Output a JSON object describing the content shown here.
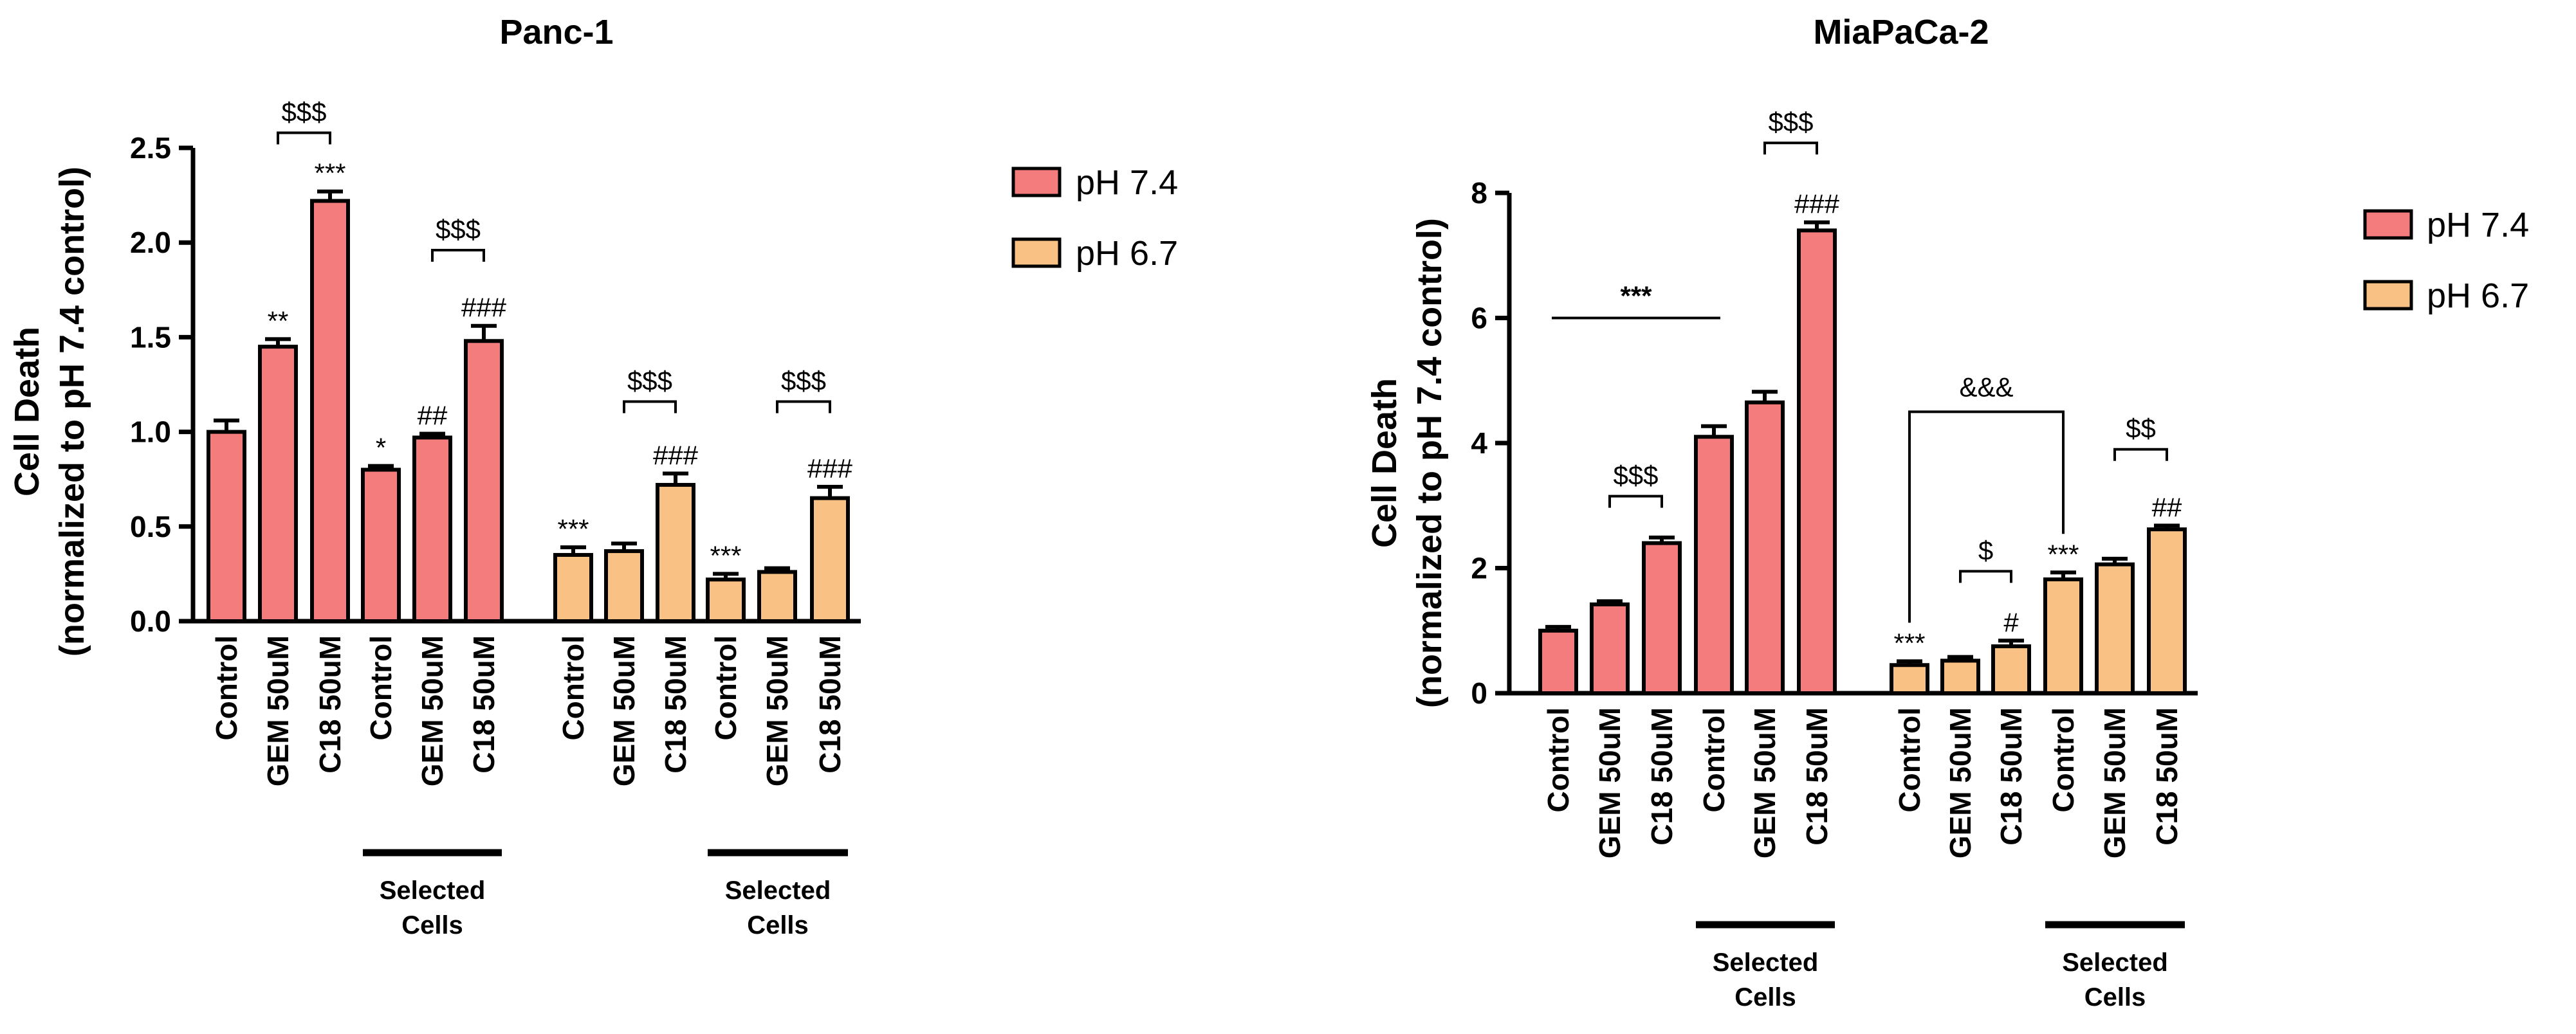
{
  "colors": {
    "ph74": "#F47C7C",
    "ph67": "#F9C284",
    "stroke": "#000000"
  },
  "legend": [
    {
      "label": "pH 7.4",
      "color_key": "ph74"
    },
    {
      "label": "pH 6.7",
      "color_key": "ph67"
    }
  ],
  "chart_data": [
    {
      "type": "bar",
      "title": "Panc-1",
      "ylabel_line1": "Cell Death",
      "ylabel_line2": "(normalized to pH 7.4 control)",
      "ylim": [
        0,
        2.5
      ],
      "yticks": [
        "0.0",
        "0.5",
        "1.0",
        "1.5",
        "2.0",
        "2.5"
      ],
      "ytick_values": [
        0,
        0.5,
        1.0,
        1.5,
        2.0,
        2.5
      ],
      "group_label_line1": "Selected",
      "group_label_line2": "Cells",
      "bars": [
        {
          "label": "Control",
          "value": 1.0,
          "err": 0.06,
          "series": "pH 7.4",
          "annotation": ""
        },
        {
          "label": "GEM 50uM",
          "value": 1.45,
          "err": 0.04,
          "series": "pH 7.4",
          "annotation": "**"
        },
        {
          "label": "C18 50uM",
          "value": 2.22,
          "err": 0.05,
          "series": "pH 7.4",
          "annotation": "***"
        },
        {
          "label": "Control",
          "value": 0.8,
          "err": 0.02,
          "series": "pH 7.4",
          "annotation": "*"
        },
        {
          "label": "GEM 50uM",
          "value": 0.97,
          "err": 0.02,
          "series": "pH 7.4",
          "annotation": "##"
        },
        {
          "label": "C18 50uM",
          "value": 1.48,
          "err": 0.08,
          "series": "pH 7.4",
          "annotation": "###"
        },
        {
          "label": "Control",
          "value": 0.35,
          "err": 0.04,
          "series": "pH 6.7",
          "annotation": "***"
        },
        {
          "label": "GEM 50uM",
          "value": 0.37,
          "err": 0.04,
          "series": "pH 6.7",
          "annotation": ""
        },
        {
          "label": "C18 50uM",
          "value": 0.72,
          "err": 0.06,
          "series": "pH 6.7",
          "annotation": "###"
        },
        {
          "label": "Control",
          "value": 0.22,
          "err": 0.03,
          "series": "pH 6.7",
          "annotation": "***"
        },
        {
          "label": "GEM 50uM",
          "value": 0.26,
          "err": 0.02,
          "series": "pH 6.7",
          "annotation": ""
        },
        {
          "label": "C18 50uM",
          "value": 0.65,
          "err": 0.06,
          "series": "pH 6.7",
          "annotation": "###"
        }
      ],
      "brackets": [
        {
          "from": 1,
          "to": 2,
          "y": 2.58,
          "label": "$$$"
        },
        {
          "from": 4,
          "to": 5,
          "y": 1.96,
          "label": "$$$"
        },
        {
          "from": 7,
          "to": 8,
          "y": 1.16,
          "label": "$$$"
        },
        {
          "from": 10,
          "to": 11,
          "y": 1.16,
          "label": "$$$"
        }
      ],
      "selected_groups": [
        [
          3,
          5
        ],
        [
          9,
          11
        ]
      ]
    },
    {
      "type": "bar",
      "title": "MiaPaCa-2",
      "ylabel_line1": "Cell Death",
      "ylabel_line2": "(normalized to pH 7.4 control)",
      "ylim": [
        0,
        8
      ],
      "yticks": [
        "0",
        "2",
        "4",
        "6",
        "8"
      ],
      "ytick_values": [
        0,
        2,
        4,
        6,
        8
      ],
      "group_label_line1": "Selected",
      "group_label_line2": "Cells",
      "bars": [
        {
          "label": "Control",
          "value": 1.0,
          "err": 0.06,
          "series": "pH 7.4",
          "annotation": ""
        },
        {
          "label": "GEM 50uM",
          "value": 1.42,
          "err": 0.05,
          "series": "pH 7.4",
          "annotation": ""
        },
        {
          "label": "C18 50uM",
          "value": 2.4,
          "err": 0.09,
          "series": "pH 7.4",
          "annotation": ""
        },
        {
          "label": "Control",
          "value": 4.1,
          "err": 0.17,
          "series": "pH 7.4",
          "annotation": ""
        },
        {
          "label": "GEM 50uM",
          "value": 4.65,
          "err": 0.17,
          "series": "pH 7.4",
          "annotation": ""
        },
        {
          "label": "C18 50uM",
          "value": 7.4,
          "err": 0.13,
          "series": "pH 7.4",
          "annotation": "###"
        },
        {
          "label": "Control",
          "value": 0.45,
          "err": 0.06,
          "series": "pH 6.7",
          "annotation": "***"
        },
        {
          "label": "GEM 50uM",
          "value": 0.52,
          "err": 0.06,
          "series": "pH 6.7",
          "annotation": ""
        },
        {
          "label": "C18 50uM",
          "value": 0.75,
          "err": 0.09,
          "series": "pH 6.7",
          "annotation": "#"
        },
        {
          "label": "Control",
          "value": 1.82,
          "err": 0.11,
          "series": "pH 6.7",
          "annotation": "***"
        },
        {
          "label": "GEM 50uM",
          "value": 2.06,
          "err": 0.09,
          "series": "pH 6.7",
          "annotation": ""
        },
        {
          "label": "C18 50uM",
          "value": 2.62,
          "err": 0.06,
          "series": "pH 6.7",
          "annotation": "##"
        }
      ],
      "brackets": [
        {
          "from": 4,
          "to": 5,
          "y": 8.8,
          "label": "$$$"
        },
        {
          "from": 1,
          "to": 2,
          "y": 3.15,
          "label": "$$$"
        },
        {
          "from": 7,
          "to": 8,
          "y": 1.95,
          "label": "$"
        },
        {
          "from": 10,
          "to": 11,
          "y": 3.9,
          "label": "$$"
        }
      ],
      "lines": [
        {
          "from": 0,
          "to": 3,
          "y": 6.0,
          "label": "***"
        }
      ],
      "comparisons": [
        {
          "from": 6,
          "to": 9,
          "y": 4.5,
          "label": "&&&"
        }
      ],
      "selected_groups": [
        [
          3,
          5
        ],
        [
          9,
          11
        ]
      ]
    }
  ]
}
